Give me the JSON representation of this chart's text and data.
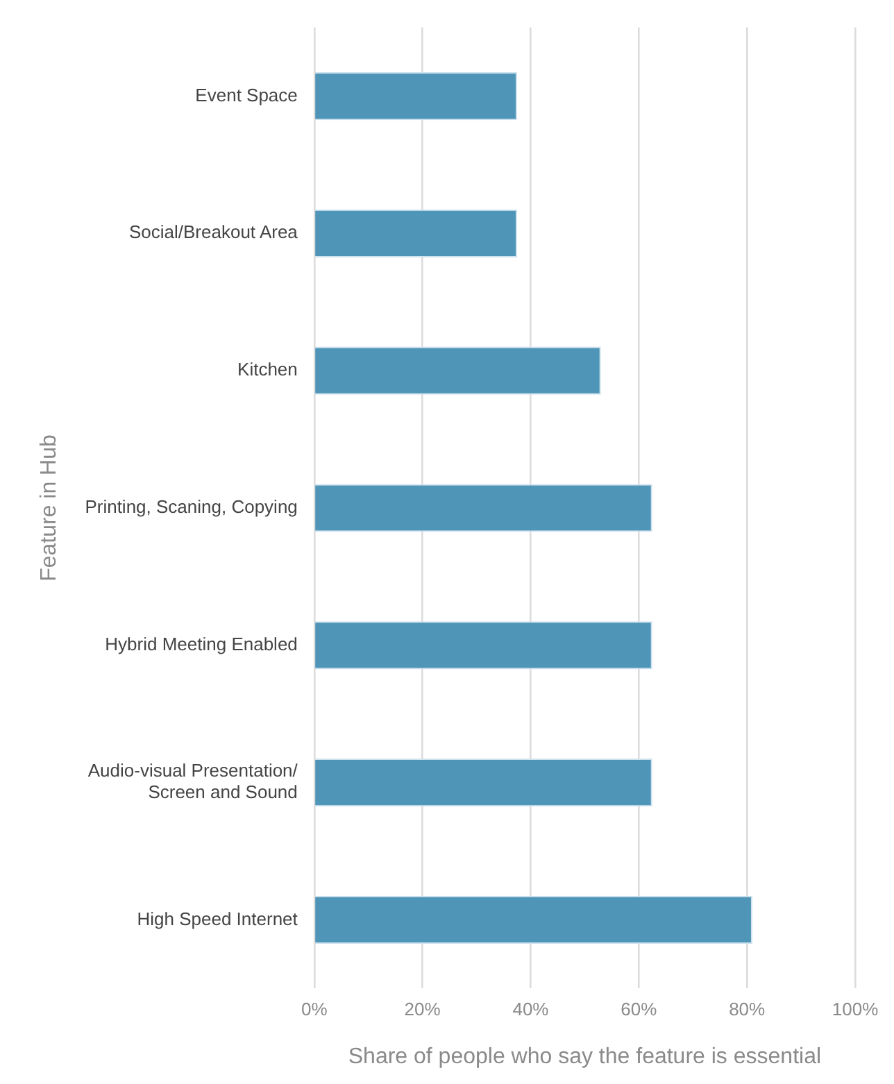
{
  "chart_data": {
    "type": "bar",
    "orientation": "horizontal",
    "xlabel": "Share of people who say the feature is essential",
    "ylabel": "Feature in Hub",
    "categories": [
      "Event Space",
      "Social/Breakout Area",
      "Kitchen",
      "Printing, Scaning, Copying",
      "Hybrid Meeting Enabled",
      "Audio-visual Presentation/ Screen and Sound",
      "High Speed Internet"
    ],
    "values": [
      37.5,
      37.5,
      53,
      62.5,
      62.5,
      62.5,
      81
    ],
    "color": "#4f95b8",
    "xlim": [
      0,
      100
    ],
    "xticks": [
      {
        "value": 0,
        "label": "0%"
      },
      {
        "value": 20,
        "label": "20%"
      },
      {
        "value": 40,
        "label": "40%"
      },
      {
        "value": 60,
        "label": "60%"
      },
      {
        "value": 80,
        "label": "80%"
      },
      {
        "value": 100,
        "label": "100%"
      }
    ],
    "grid": "x"
  }
}
